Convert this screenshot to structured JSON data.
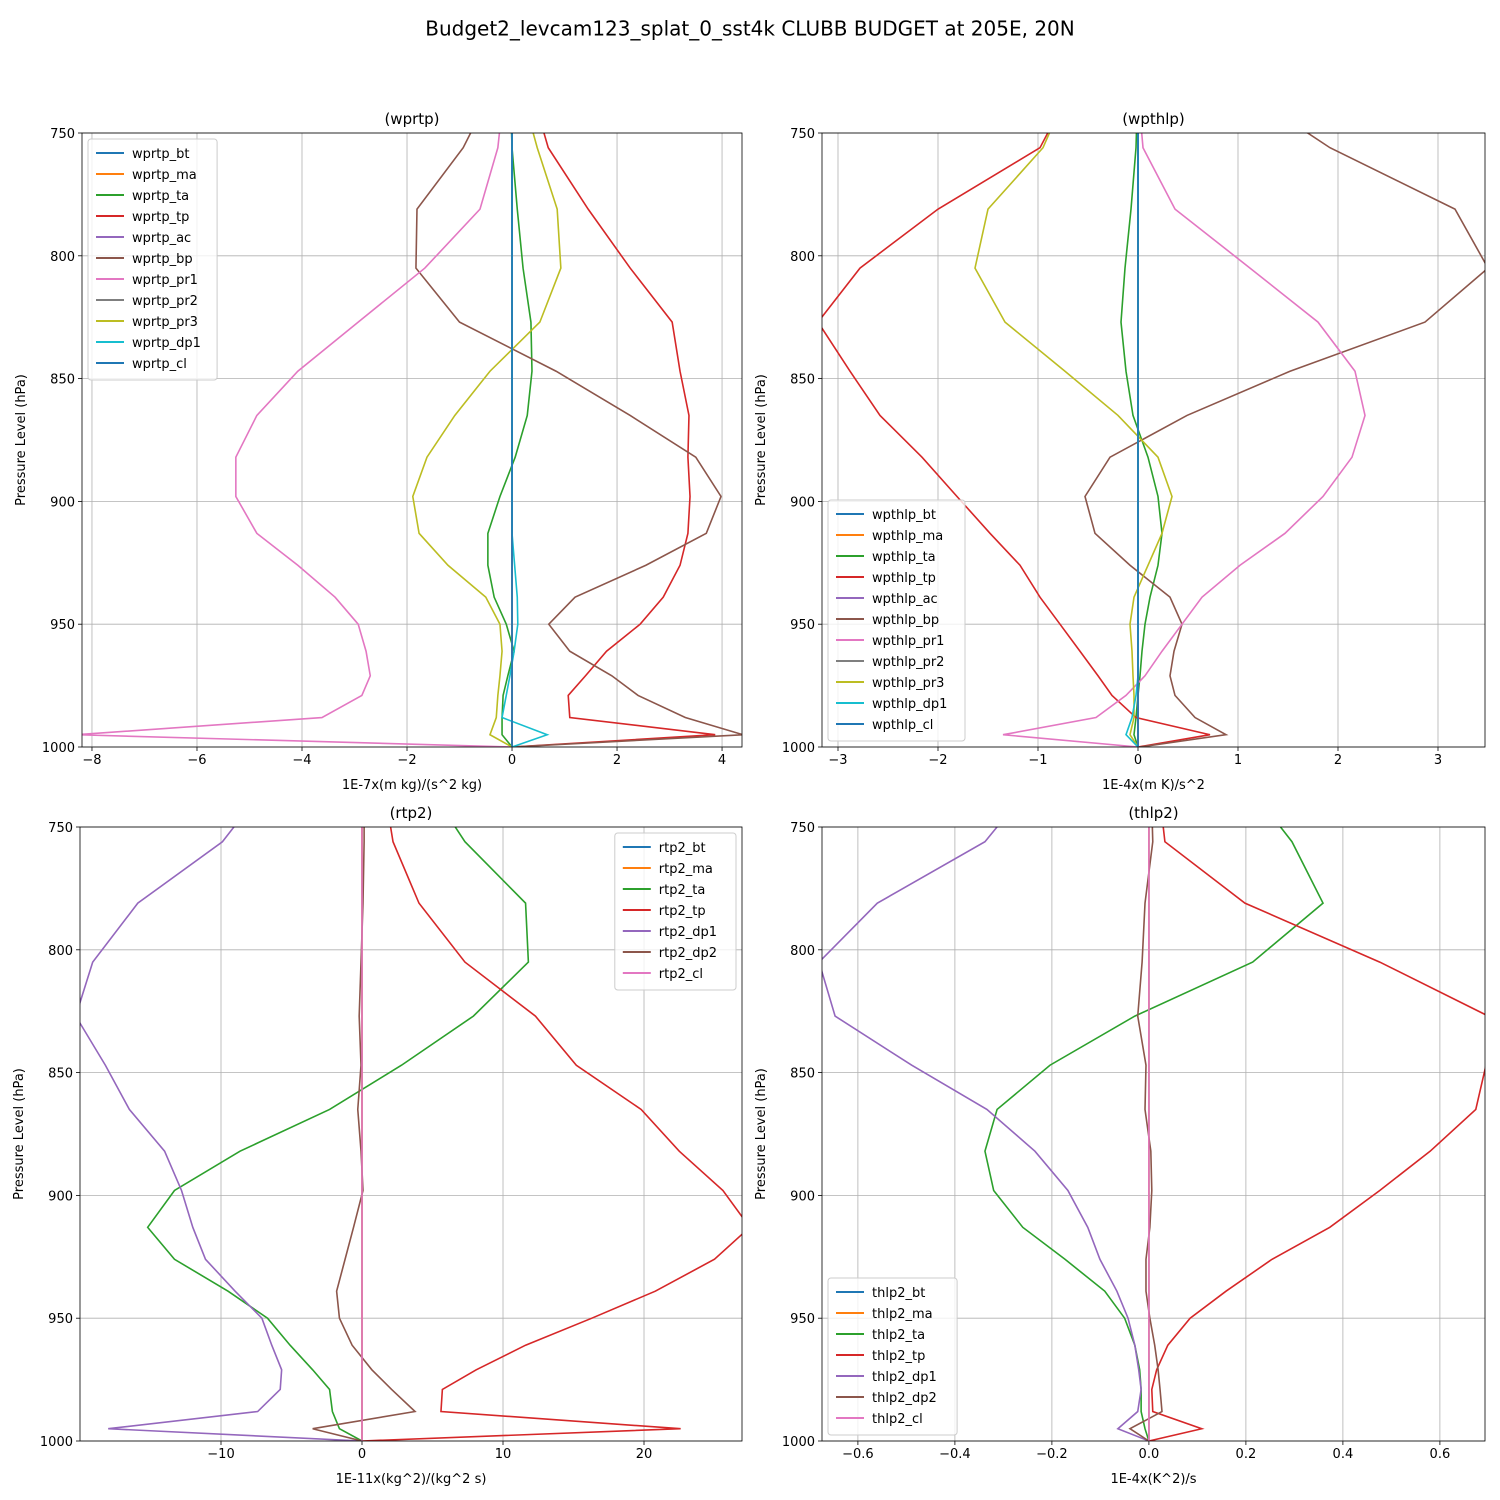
{
  "title": "Budget2_levcam123_splat_0_sst4k CLUBB BUDGET at 205E, 20N",
  "chart_data": [
    {
      "type": "line",
      "title": "(wprtp)",
      "x_label": "1E-7x(m kg)/(s^2 kg)",
      "y_label": "Pressure Level (hPa)",
      "grid": true,
      "legend": "upper left",
      "xlim": [
        -8.19,
        4.38
      ],
      "xticks": [
        {
          "value": -8,
          "label": "−8"
        },
        {
          "value": -6,
          "label": "−6"
        },
        {
          "value": -4,
          "label": "−4"
        },
        {
          "value": -2,
          "label": "−2"
        },
        0,
        2,
        4
      ],
      "ylim": [
        1000,
        750
      ],
      "yticks": [
        750,
        800,
        850,
        900,
        950,
        1000
      ],
      "y": [
        742,
        756,
        781,
        805,
        827,
        847,
        865,
        882,
        898,
        913,
        926,
        939,
        950,
        961,
        971,
        979,
        988,
        995,
        1000
      ],
      "series": [
        {
          "name": "wprtp_bt",
          "color": "#1f77b4",
          "values": [
            0,
            0,
            0,
            0,
            0,
            0,
            0,
            0,
            0,
            0,
            0,
            0,
            0,
            0,
            0,
            0,
            0,
            0,
            0
          ]
        },
        {
          "name": "wprtp_ma",
          "color": "#ff7f0e",
          "values": [
            0,
            0,
            0,
            0,
            0,
            0,
            0,
            0,
            0,
            0,
            0,
            0,
            0,
            0,
            0,
            0,
            0,
            0,
            0
          ]
        },
        {
          "name": "wprtp_ta",
          "color": "#2ca02c",
          "values": [
            -0.02,
            0,
            0.1,
            0.21,
            0.36,
            0.38,
            0.29,
            0.06,
            -0.23,
            -0.46,
            -0.46,
            -0.34,
            -0.11,
            0.04,
            -0.08,
            -0.17,
            -0.19,
            -0.19,
            0
          ]
        },
        {
          "name": "wprtp_tp",
          "color": "#d62728",
          "values": [
            0.5,
            0.69,
            1.45,
            2.25,
            3.05,
            3.2,
            3.37,
            3.35,
            3.39,
            3.35,
            3.2,
            2.88,
            2.44,
            1.8,
            1.4,
            1.07,
            1.1,
            3.87,
            0
          ]
        },
        {
          "name": "wprtp_ac",
          "color": "#9467bd",
          "values": [
            0,
            0,
            0,
            0,
            0,
            0,
            0,
            0,
            0,
            0,
            0,
            0,
            0,
            0,
            0,
            0,
            0,
            0,
            0
          ]
        },
        {
          "name": "wprtp_bp",
          "color": "#8c564b",
          "values": [
            -0.6,
            -0.93,
            -1.81,
            -1.83,
            -1.0,
            0.84,
            2.25,
            3.5,
            3.98,
            3.7,
            2.55,
            1.2,
            0.7,
            1.1,
            1.9,
            2.4,
            3.3,
            4.4,
            0
          ]
        },
        {
          "name": "wprtp_pr1",
          "color": "#e377c2",
          "values": [
            -0.2,
            -0.27,
            -0.61,
            -1.66,
            -2.93,
            -4.08,
            -4.86,
            -5.26,
            -5.26,
            -4.86,
            -4.08,
            -3.37,
            -2.93,
            -2.78,
            -2.7,
            -2.86,
            -3.62,
            -8.3,
            0
          ]
        },
        {
          "name": "wprtp_pr2",
          "color": "#7f7f7f",
          "values": [
            0,
            0,
            0,
            0,
            0,
            0,
            0,
            0,
            0,
            0,
            0,
            0,
            0,
            0,
            0,
            0,
            0,
            0,
            0
          ]
        },
        {
          "name": "wprtp_pr3",
          "color": "#bcbd22",
          "values": [
            0.3,
            0.48,
            0.86,
            0.93,
            0.53,
            -0.42,
            -1.09,
            -1.62,
            -1.89,
            -1.77,
            -1.22,
            -0.5,
            -0.23,
            -0.19,
            -0.23,
            -0.27,
            -0.3,
            -0.42,
            0
          ]
        },
        {
          "name": "wprtp_dp1",
          "color": "#17becf",
          "values": [
            0,
            0,
            0,
            0,
            0,
            0,
            0,
            0,
            0,
            0,
            0.05,
            0.1,
            0.11,
            0.04,
            -0.04,
            -0.11,
            -0.19,
            0.67,
            0
          ]
        },
        {
          "name": "wprtp_cl",
          "color": "#1f77b4",
          "values": [
            0,
            0,
            0,
            0,
            0,
            0,
            0,
            0,
            0,
            0,
            0,
            0,
            0,
            0,
            0,
            0,
            0,
            0,
            0
          ]
        }
      ]
    },
    {
      "type": "line",
      "title": "(wpthlp)",
      "x_label": "1E-4x(m K)/s^2",
      "y_label": "Pressure Level (hPa)",
      "grid": true,
      "legend": "lower left",
      "xlim": [
        -3.16,
        3.47
      ],
      "xticks": [
        {
          "value": -3,
          "label": "−3"
        },
        {
          "value": -2,
          "label": "−2"
        },
        {
          "value": -1,
          "label": "−1"
        },
        0,
        1,
        2,
        3
      ],
      "ylim": [
        1000,
        750
      ],
      "yticks": [
        750,
        800,
        850,
        900,
        950,
        1000
      ],
      "y": [
        742,
        756,
        781,
        805,
        827,
        847,
        865,
        882,
        898,
        913,
        926,
        939,
        950,
        961,
        971,
        979,
        988,
        995,
        1000
      ],
      "series": [
        {
          "name": "wpthlp_bt",
          "color": "#1f77b4",
          "values": [
            0,
            0,
            0,
            0,
            0,
            0,
            0,
            0,
            0,
            0,
            0,
            0,
            0,
            0,
            0,
            0,
            0,
            0,
            0
          ]
        },
        {
          "name": "wpthlp_ma",
          "color": "#ff7f0e",
          "values": [
            0,
            0,
            0,
            0,
            0,
            0,
            0,
            0,
            0,
            0,
            0,
            0,
            0,
            0,
            0,
            0,
            0,
            0,
            0
          ]
        },
        {
          "name": "wpthlp_ta",
          "color": "#2ca02c",
          "values": [
            -0.01,
            -0.02,
            -0.07,
            -0.13,
            -0.17,
            -0.12,
            -0.05,
            0.1,
            0.2,
            0.24,
            0.2,
            0.12,
            0.07,
            0.04,
            0.02,
            0,
            -0.02,
            -0.04,
            0
          ]
        },
        {
          "name": "wpthlp_tp",
          "color": "#d62728",
          "values": [
            -0.8,
            -0.98,
            -2.0,
            -2.78,
            -3.2,
            -2.88,
            -2.58,
            -2.16,
            -1.81,
            -1.48,
            -1.18,
            -0.98,
            -0.78,
            -0.58,
            -0.4,
            -0.26,
            -0.02,
            0.72,
            0
          ]
        },
        {
          "name": "wpthlp_ac",
          "color": "#9467bd",
          "values": [
            0,
            0,
            0,
            0,
            0,
            0,
            0,
            0,
            0,
            0,
            0,
            0,
            0,
            0,
            0,
            0,
            0,
            0,
            0
          ]
        },
        {
          "name": "wpthlp_bp",
          "color": "#8c564b",
          "values": [
            1.4,
            1.92,
            3.17,
            3.5,
            2.87,
            1.52,
            0.49,
            -0.28,
            -0.53,
            -0.43,
            -0.08,
            0.32,
            0.44,
            0.36,
            0.32,
            0.37,
            0.57,
            0.88,
            0.02
          ]
        },
        {
          "name": "wpthlp_pr1",
          "color": "#e377c2",
          "values": [
            0.02,
            0.05,
            0.37,
            1.12,
            1.8,
            2.17,
            2.27,
            2.14,
            1.85,
            1.47,
            1.02,
            0.64,
            0.44,
            0.24,
            0.07,
            -0.12,
            -0.42,
            -1.35,
            0
          ]
        },
        {
          "name": "wpthlp_pr2",
          "color": "#7f7f7f",
          "values": [
            0,
            0,
            0,
            0,
            0,
            0,
            0,
            0,
            0,
            0,
            0,
            0,
            0,
            0,
            0,
            0,
            0,
            0,
            0
          ]
        },
        {
          "name": "wpthlp_pr3",
          "color": "#bcbd22",
          "values": [
            -0.8,
            -0.95,
            -1.5,
            -1.63,
            -1.33,
            -0.73,
            -0.2,
            0.2,
            0.34,
            0.24,
            0.1,
            -0.04,
            -0.08,
            -0.06,
            -0.05,
            -0.04,
            -0.04,
            -0.08,
            0
          ]
        },
        {
          "name": "wpthlp_dp1",
          "color": "#17becf",
          "values": [
            0,
            0,
            0,
            0,
            0,
            0,
            0,
            0,
            0,
            0,
            0,
            0,
            0,
            0,
            0,
            -0.02,
            -0.06,
            -0.12,
            0
          ]
        },
        {
          "name": "wpthlp_cl",
          "color": "#1f77b4",
          "values": [
            0,
            0,
            0,
            0,
            0,
            0,
            0,
            0,
            0,
            0,
            0,
            0,
            0,
            0,
            0,
            0,
            0,
            0,
            0
          ]
        }
      ]
    },
    {
      "type": "line",
      "title": "(rtp2)",
      "x_label": "1E-11x(kg^2)/(kg^2 s)",
      "y_label": "Pressure Level (hPa)",
      "grid": true,
      "legend": "upper right",
      "xlim": [
        -20,
        26.95
      ],
      "xticks": [
        {
          "value": -10,
          "label": "−10"
        },
        0,
        10,
        20
      ],
      "ylim": [
        1000,
        750
      ],
      "yticks": [
        750,
        800,
        850,
        900,
        950,
        1000
      ],
      "y": [
        742,
        756,
        781,
        805,
        827,
        847,
        865,
        882,
        898,
        913,
        926,
        939,
        950,
        961,
        971,
        979,
        988,
        995,
        1000
      ],
      "series": [
        {
          "name": "rtp2_bt",
          "color": "#1f77b4",
          "values": [
            0,
            0,
            0,
            0,
            0,
            0,
            0,
            0,
            0,
            0,
            0,
            0,
            0,
            0,
            0,
            0,
            0,
            0,
            0
          ]
        },
        {
          "name": "rtp2_ma",
          "color": "#ff7f0e",
          "values": [
            0,
            0,
            0,
            0,
            0,
            0,
            0,
            0,
            0,
            0,
            0,
            0,
            0,
            0,
            0,
            0,
            0,
            0,
            0
          ]
        },
        {
          "name": "rtp2_ta",
          "color": "#2ca02c",
          "values": [
            5.7,
            7.3,
            11.6,
            11.8,
            7.9,
            2.8,
            -2.3,
            -8.65,
            -13.3,
            -15.2,
            -13.3,
            -9.5,
            -6.7,
            -5.1,
            -3.5,
            -2.3,
            -2.1,
            -1.6,
            0
          ]
        },
        {
          "name": "rtp2_tp",
          "color": "#d62728",
          "values": [
            1.8,
            2.2,
            4.04,
            7.3,
            12.3,
            15.2,
            19.8,
            22.5,
            25.6,
            27.5,
            25.0,
            20.8,
            16.3,
            11.6,
            8.1,
            5.7,
            5.6,
            22.6,
            0
          ]
        },
        {
          "name": "rtp2_dp1",
          "color": "#9467bd",
          "values": [
            -8.0,
            -9.9,
            -15.9,
            -19.1,
            -20.3,
            -18.2,
            -16.5,
            -14.0,
            -12.8,
            -12.0,
            -11.1,
            -9.0,
            -7.1,
            -6.4,
            -5.7,
            -5.8,
            -7.4,
            -18.0,
            0
          ]
        },
        {
          "name": "rtp2_dp2",
          "color": "#8c564b",
          "values": [
            0.15,
            0.15,
            0.07,
            -0.07,
            -0.2,
            -0.07,
            -0.3,
            -0.07,
            0.07,
            -0.6,
            -1.2,
            -1.8,
            -1.6,
            -0.7,
            0.7,
            2.1,
            3.76,
            -3.5,
            0
          ]
        },
        {
          "name": "rtp2_cl",
          "color": "#e377c2",
          "values": [
            0,
            0,
            0,
            0,
            0,
            0,
            0,
            0,
            0,
            0,
            0,
            0,
            0,
            0,
            0,
            0,
            0,
            0,
            0
          ]
        }
      ]
    },
    {
      "type": "line",
      "title": "(thlp2)",
      "x_label": "1E-4x(K^2)/s",
      "y_label": "Pressure Level (hPa)",
      "grid": true,
      "legend": "lower left",
      "xlim": [
        -0.674,
        0.693
      ],
      "xticks": [
        {
          "value": -0.6,
          "label": "−0.6"
        },
        {
          "value": -0.4,
          "label": "−0.4"
        },
        {
          "value": -0.2,
          "label": "−0.2"
        },
        {
          "value": 0,
          "label": "0.0"
        },
        0.2,
        0.4,
        0.6
      ],
      "ylim": [
        1000,
        750
      ],
      "yticks": [
        750,
        800,
        850,
        900,
        950,
        1000
      ],
      "y": [
        742,
        756,
        781,
        805,
        827,
        847,
        865,
        882,
        898,
        913,
        926,
        939,
        950,
        961,
        971,
        979,
        988,
        995,
        1000
      ],
      "series": [
        {
          "name": "thlp2_bt",
          "color": "#1f77b4",
          "values": [
            0,
            0,
            0,
            0,
            0,
            0,
            0,
            0,
            0,
            0,
            0,
            0,
            0,
            0,
            0,
            0,
            0,
            0,
            0
          ]
        },
        {
          "name": "thlp2_ma",
          "color": "#ff7f0e",
          "values": [
            0,
            0,
            0,
            0,
            0,
            0,
            0,
            0,
            0,
            0,
            0,
            0,
            0,
            0,
            0,
            0,
            0,
            0,
            0
          ]
        },
        {
          "name": "thlp2_ta",
          "color": "#2ca02c",
          "values": [
            0.24,
            0.295,
            0.359,
            0.214,
            -0.029,
            -0.204,
            -0.313,
            -0.338,
            -0.32,
            -0.26,
            -0.173,
            -0.091,
            -0.05,
            -0.029,
            -0.019,
            -0.016,
            -0.016,
            -0.008,
            0
          ]
        },
        {
          "name": "thlp2_tp",
          "color": "#d62728",
          "values": [
            0.025,
            0.033,
            0.198,
            0.476,
            0.7,
            0.695,
            0.674,
            0.58,
            0.476,
            0.373,
            0.254,
            0.159,
            0.085,
            0.039,
            0.016,
            0.006,
            0.008,
            0.109,
            0
          ]
        },
        {
          "name": "thlp2_dp1",
          "color": "#9467bd",
          "values": [
            -0.28,
            -0.338,
            -0.56,
            -0.68,
            -0.647,
            -0.489,
            -0.334,
            -0.235,
            -0.167,
            -0.126,
            -0.101,
            -0.066,
            -0.043,
            -0.029,
            -0.021,
            -0.016,
            -0.023,
            -0.064,
            0
          ]
        },
        {
          "name": "thlp2_dp2",
          "color": "#8c564b",
          "values": [
            0.006,
            0.008,
            -0.008,
            -0.014,
            -0.023,
            -0.006,
            -0.008,
            0.004,
            0.006,
            0.002,
            -0.006,
            -0.006,
            0.002,
            0.012,
            0.019,
            0.023,
            0.027,
            -0.039,
            0
          ]
        },
        {
          "name": "thlp2_cl",
          "color": "#e377c2",
          "values": [
            0,
            0,
            0,
            0,
            0,
            0,
            0,
            0,
            0,
            0,
            0,
            0,
            0,
            0,
            0,
            0,
            0,
            0,
            0
          ]
        }
      ]
    }
  ]
}
